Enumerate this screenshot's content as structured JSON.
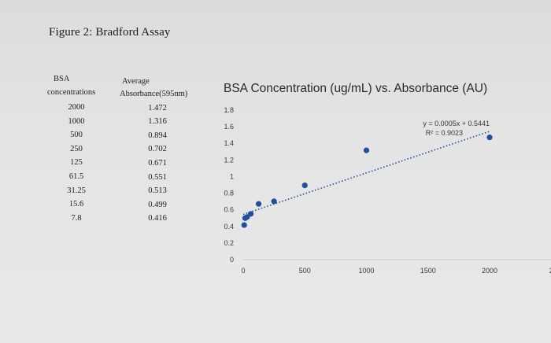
{
  "figure": {
    "title": "Figure 2: Bradford Assay"
  },
  "table": {
    "headers": {
      "col1_line1": "BSA",
      "col1_line2": "concentrations",
      "col2_line1": "Average",
      "col2_line2": "Absorbance(595nm)"
    },
    "rows": [
      {
        "conc": "2000",
        "abs": "1.472"
      },
      {
        "conc": "1000",
        "abs": "1.316"
      },
      {
        "conc": "500",
        "abs": "0.894"
      },
      {
        "conc": "250",
        "abs": "0.702"
      },
      {
        "conc": "125",
        "abs": "0.671"
      },
      {
        "conc": "61.5",
        "abs": "0.551"
      },
      {
        "conc": "31.25",
        "abs": "0.513"
      },
      {
        "conc": "15.6",
        "abs": "0.499"
      },
      {
        "conc": "7.8",
        "abs": "0.416"
      }
    ]
  },
  "chart_data": {
    "type": "scatter",
    "title": "BSA Concentration (ug/mL) vs. Absorbance (AU)",
    "xlabel": "",
    "ylabel": "",
    "xlim": [
      0,
      2500
    ],
    "ylim": [
      0,
      1.8
    ],
    "x_ticks": [
      "0",
      "500",
      "1000",
      "1500",
      "2000",
      "2"
    ],
    "y_ticks": [
      "0",
      "0.2",
      "0.4",
      "0.6",
      "0.8",
      "1",
      "1.2",
      "1.4",
      "1.6",
      "1.8"
    ],
    "grid": false,
    "point_color": "#1f4e9c",
    "trendline_color": "#1f4e9c",
    "points": [
      {
        "x": 2000,
        "y": 1.472
      },
      {
        "x": 1000,
        "y": 1.316
      },
      {
        "x": 500,
        "y": 0.894
      },
      {
        "x": 250,
        "y": 0.702
      },
      {
        "x": 125,
        "y": 0.671
      },
      {
        "x": 61.5,
        "y": 0.551
      },
      {
        "x": 31.25,
        "y": 0.513
      },
      {
        "x": 15.6,
        "y": 0.499
      },
      {
        "x": 7.8,
        "y": 0.416
      }
    ],
    "trendline": {
      "slope": 0.0005,
      "intercept": 0.5441,
      "equation": "y = 0.0005x + 0.5441",
      "r_squared": "R² = 0.9023"
    }
  }
}
